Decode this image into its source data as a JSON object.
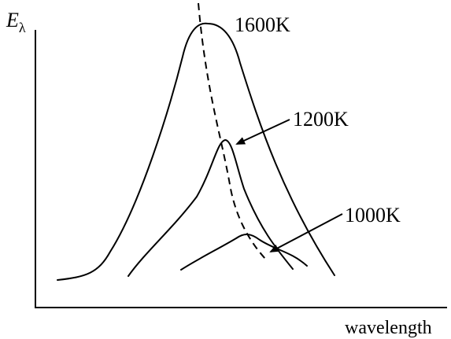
{
  "diagram": {
    "y_axis_label": "E",
    "y_axis_subscript": "λ",
    "x_axis_label": "wavelength",
    "curves": [
      {
        "id": "1600",
        "label": "1600K"
      },
      {
        "id": "1200",
        "label": "1200K"
      },
      {
        "id": "1000",
        "label": "1000K"
      }
    ]
  },
  "colors": {
    "line": "#000000",
    "background": "#ffffff"
  }
}
